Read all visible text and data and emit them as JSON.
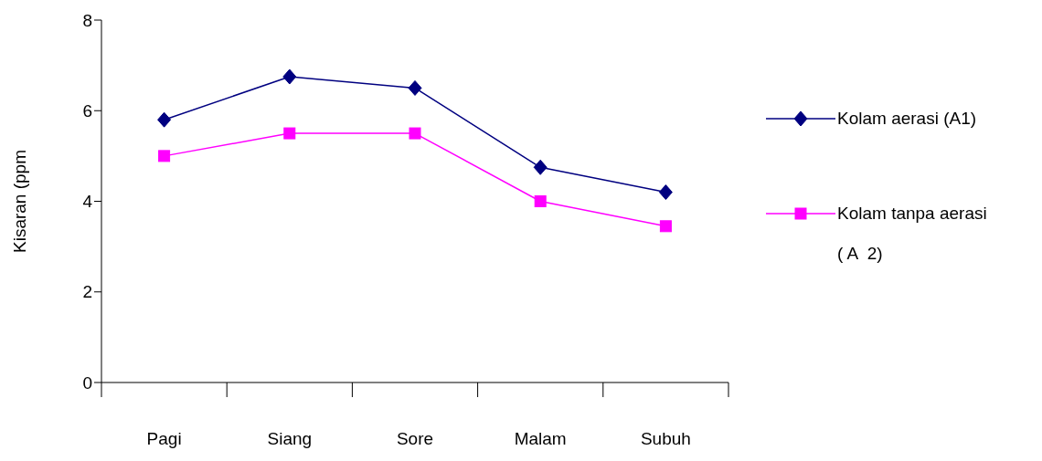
{
  "chart_data": {
    "type": "line",
    "ylabel": "Kisaran (ppm",
    "categories": [
      "Pagi",
      "Siang",
      "Sore",
      "Malam",
      "Subuh"
    ],
    "series": [
      {
        "name": "Kolam aerasi (A1)",
        "color": "#000080",
        "marker": "diamond",
        "values": [
          5.8,
          6.75,
          6.5,
          4.75,
          4.2
        ]
      },
      {
        "name": "Kolam tanpa aerasi ( A  2)",
        "color": "#ff00ff",
        "marker": "square",
        "values": [
          5.0,
          5.5,
          5.5,
          4.0,
          3.45
        ]
      }
    ],
    "ylim": [
      0,
      8
    ],
    "yticks": [
      0,
      2,
      4,
      6,
      8
    ],
    "grid": false,
    "legend": "right"
  }
}
